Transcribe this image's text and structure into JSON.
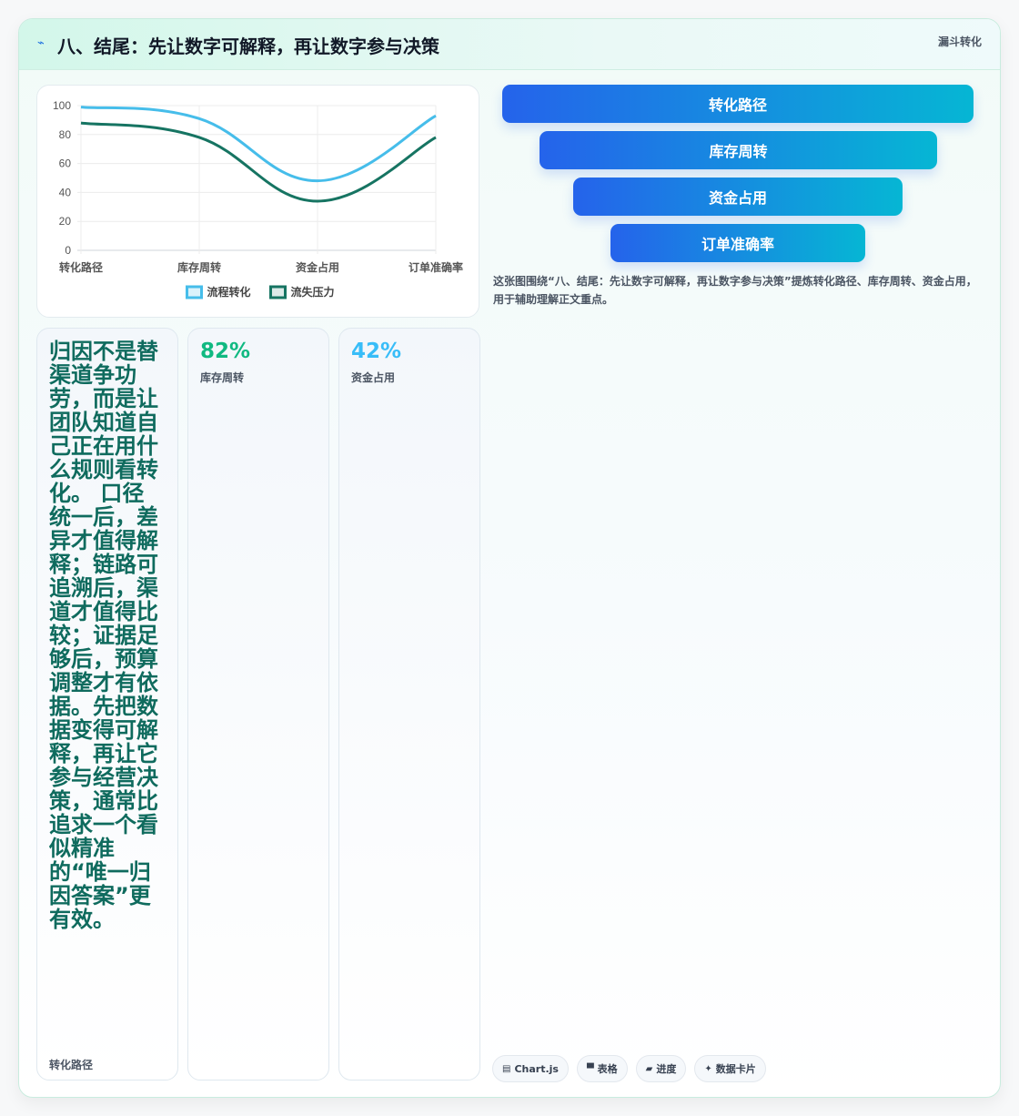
{
  "header": {
    "title": "八、结尾：先让数字可解释，再让数字参与决策",
    "tag": "漏斗转化",
    "title_icon": "lightning-icon"
  },
  "chart_data": {
    "type": "line",
    "categories": [
      "转化路径",
      "库存周转",
      "资金占用",
      "订单准确率"
    ],
    "series": [
      {
        "name": "流程转化",
        "values": [
          99,
          91,
          48,
          93
        ],
        "color": "#46bdea"
      },
      {
        "name": "流失压力",
        "values": [
          88,
          78,
          34,
          78
        ],
        "color": "#167462"
      }
    ],
    "yticks": [
      0,
      20,
      40,
      60,
      80,
      100
    ],
    "ylim": [
      0,
      100
    ],
    "legend": "bottom",
    "grid": true
  },
  "funnel": {
    "stages": [
      "转化路径",
      "库存周转",
      "资金占用",
      "订单准确率"
    ]
  },
  "description": "这张图围绕“八、结尾：先让数字可解释，再让数字参与决策”提炼转化路径、库存周转、资金占用，用于辅助理解正文重点。",
  "stats": [
    {
      "value": "归因不是替渠道争功劳，而是让团队知道自己正在用什么规则看转化。 口径统一后，差异才值得解释；链路可追溯后，渠道才值得比较；证据足够后，预算调整才有依据。先把数据变得可解释，再让它参与经营决策，通常比追求一个看似精准的“唯一归因答案”更有效。",
      "label": "转化路径",
      "color": "#0f6b5e"
    },
    {
      "value": "82%",
      "label": "库存周转",
      "color": "#10b981"
    },
    {
      "value": "42%",
      "label": "资金占用",
      "color": "#38bdf8"
    }
  ],
  "chips": [
    {
      "icon": "chart-icon",
      "glyph": "▤",
      "label": "Chart.js"
    },
    {
      "icon": "table-icon",
      "glyph": "▀",
      "label": "表格"
    },
    {
      "icon": "progress-icon",
      "glyph": "▰",
      "label": "进度"
    },
    {
      "icon": "sparkle-icon",
      "glyph": "✦",
      "label": "数据卡片"
    }
  ]
}
